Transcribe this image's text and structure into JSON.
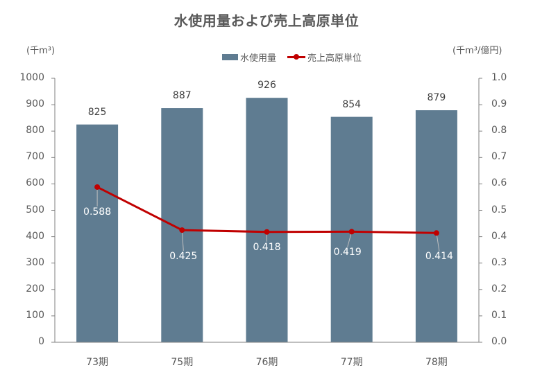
{
  "chart": {
    "title": "水使用量および売上高原単位",
    "left_unit": "(千m³)",
    "right_unit": "(千m³/億円)",
    "legend": [
      {
        "label": "水使用量",
        "type": "bar",
        "color": "#5f7c91"
      },
      {
        "label": "売上高原単位",
        "type": "line",
        "color": "#c00000"
      }
    ],
    "left_ticks": [
      "0",
      "100",
      "200",
      "300",
      "400",
      "500",
      "600",
      "700",
      "800",
      "900",
      "1000"
    ],
    "right_ticks": [
      "0.0",
      "0.1",
      "0.2",
      "0.3",
      "0.4",
      "0.5",
      "0.6",
      "0.7",
      "0.8",
      "0.9",
      "1.0"
    ],
    "categories": [
      "73期",
      "75期",
      "76期",
      "77期",
      "78期"
    ],
    "bar_labels": [
      "825",
      "887",
      "926",
      "854",
      "879"
    ],
    "line_labels": [
      "0.588",
      "0.425",
      "0.418",
      "0.419",
      "0.414"
    ]
  },
  "chart_data": {
    "type": "bar",
    "title": "水使用量および売上高原単位",
    "categories": [
      "73期",
      "75期",
      "76期",
      "77期",
      "78期"
    ],
    "series": [
      {
        "name": "水使用量",
        "type": "bar",
        "axis": "left",
        "color": "#5f7c91",
        "values": [
          825,
          887,
          926,
          854,
          879
        ]
      },
      {
        "name": "売上高原単位",
        "type": "line",
        "axis": "right",
        "color": "#c00000",
        "values": [
          0.588,
          0.425,
          0.418,
          0.419,
          0.414
        ]
      }
    ],
    "xlabel": "",
    "ylabel": "(千m³)",
    "ylabel_right": "(千m³/億円)",
    "ylim": [
      0,
      1000
    ],
    "ylim_right": [
      0.0,
      1.0
    ],
    "grid": false,
    "legend_position": "top"
  }
}
